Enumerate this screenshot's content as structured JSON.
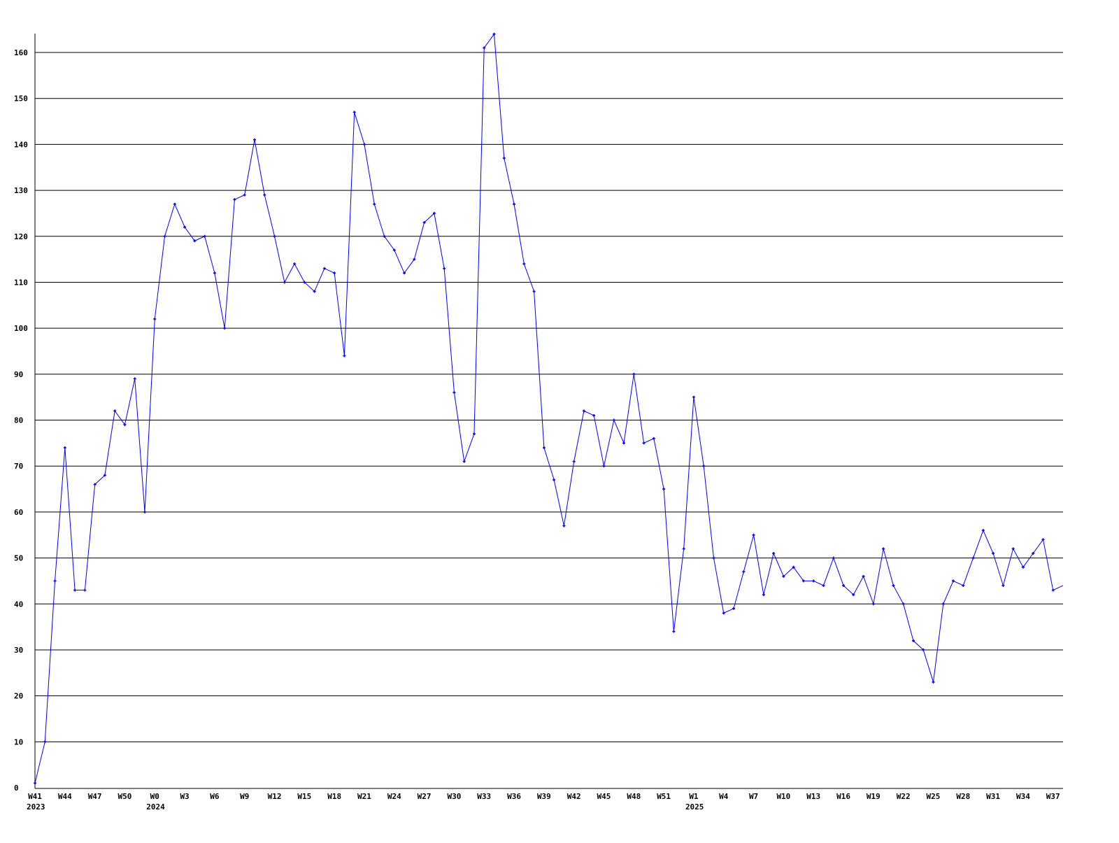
{
  "chart_data": {
    "type": "line",
    "title": "",
    "xlabel": "",
    "ylabel": "",
    "ylim": [
      0,
      160
    ],
    "y_ticks": [
      0,
      10,
      20,
      30,
      40,
      50,
      60,
      70,
      80,
      90,
      100,
      110,
      120,
      130,
      140,
      150,
      160
    ],
    "grid": "horizontal",
    "x_tick_labels": [
      {
        "label": "W41",
        "year": "2023"
      },
      {
        "label": "W44",
        "year": ""
      },
      {
        "label": "W47",
        "year": ""
      },
      {
        "label": "W50",
        "year": ""
      },
      {
        "label": "W0",
        "year": "2024"
      },
      {
        "label": "W3",
        "year": ""
      },
      {
        "label": "W6",
        "year": ""
      },
      {
        "label": "W9",
        "year": ""
      },
      {
        "label": "W12",
        "year": ""
      },
      {
        "label": "W15",
        "year": ""
      },
      {
        "label": "W18",
        "year": ""
      },
      {
        "label": "W21",
        "year": ""
      },
      {
        "label": "W24",
        "year": ""
      },
      {
        "label": "W27",
        "year": ""
      },
      {
        "label": "W30",
        "year": ""
      },
      {
        "label": "W33",
        "year": ""
      },
      {
        "label": "W36",
        "year": ""
      },
      {
        "label": "W39",
        "year": ""
      },
      {
        "label": "W42",
        "year": ""
      },
      {
        "label": "W45",
        "year": ""
      },
      {
        "label": "W48",
        "year": ""
      },
      {
        "label": "W51",
        "year": ""
      },
      {
        "label": "W1",
        "year": "2025"
      },
      {
        "label": "W4",
        "year": ""
      },
      {
        "label": "W7",
        "year": ""
      },
      {
        "label": "W10",
        "year": ""
      },
      {
        "label": "W13",
        "year": ""
      },
      {
        "label": "W16",
        "year": ""
      },
      {
        "label": "W19",
        "year": ""
      },
      {
        "label": "W22",
        "year": ""
      },
      {
        "label": "W25",
        "year": ""
      },
      {
        "label": "W28",
        "year": ""
      },
      {
        "label": "W31",
        "year": ""
      },
      {
        "label": "W34",
        "year": ""
      },
      {
        "label": "W37",
        "year": ""
      }
    ],
    "series": [
      {
        "color": "#0000ff",
        "values": [
          1,
          10,
          45,
          74,
          43,
          43,
          66,
          68,
          82,
          79,
          89,
          60,
          102,
          120,
          127,
          122,
          119,
          120,
          112,
          100,
          128,
          129,
          141,
          129,
          120,
          110,
          114,
          110,
          108,
          113,
          112,
          94,
          147,
          140,
          127,
          120,
          117,
          112,
          115,
          123,
          125,
          113,
          86,
          71,
          77,
          161,
          164,
          137,
          127,
          114,
          108,
          74,
          67,
          57,
          71,
          82,
          81,
          70,
          80,
          75,
          90,
          75,
          76,
          65,
          34,
          52,
          85,
          70,
          50,
          38,
          39,
          47,
          55,
          42,
          51,
          46,
          48,
          45,
          45,
          44,
          50,
          44,
          42,
          46,
          40,
          52,
          44,
          40,
          32,
          30,
          23,
          40,
          45,
          44,
          50,
          56,
          51,
          44,
          52,
          48,
          51,
          54,
          43,
          44
        ]
      }
    ]
  }
}
